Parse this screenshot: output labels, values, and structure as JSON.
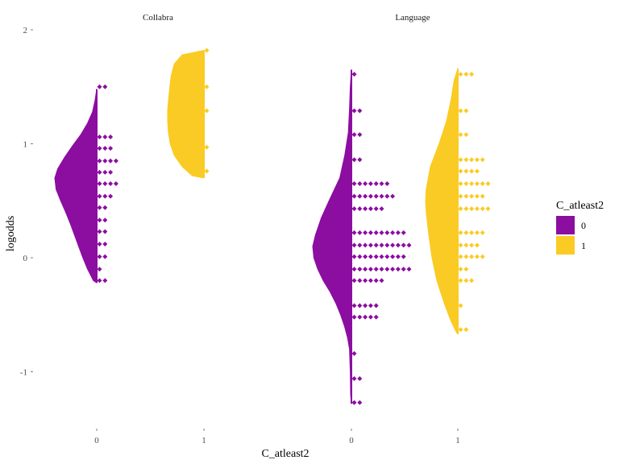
{
  "chart_data": {
    "type": "raincloud",
    "xlabel": "C_atleast2",
    "ylabel": "logodds",
    "ylim": [
      -1.5,
      2.15
    ],
    "yticks": [
      -1,
      0,
      1,
      2
    ],
    "legend": {
      "title": "C_atleast2",
      "placement": "right",
      "entries": [
        "0",
        "1"
      ]
    },
    "colors": {
      "0": "#8B0EA0",
      "1": "#FACB24"
    },
    "facets": [
      {
        "title": "Collabra",
        "groups": [
          {
            "category": "0",
            "dots": [
              [
                1.5,
                2
              ],
              [
                1.06,
                3
              ],
              [
                0.96,
                3
              ],
              [
                0.85,
                4
              ],
              [
                0.75,
                3
              ],
              [
                0.65,
                4
              ],
              [
                0.54,
                3
              ],
              [
                0.44,
                2
              ],
              [
                0.33,
                2
              ],
              [
                0.23,
                2
              ],
              [
                0.12,
                2
              ],
              [
                0.01,
                2
              ],
              [
                -0.1,
                1
              ],
              [
                -0.2,
                2
              ]
            ],
            "density": [
              [
                1.48,
                0.0
              ],
              [
                1.38,
                0.04
              ],
              [
                1.28,
                0.1
              ],
              [
                1.18,
                0.22
              ],
              [
                1.08,
                0.38
              ],
              [
                0.98,
                0.58
              ],
              [
                0.88,
                0.77
              ],
              [
                0.78,
                0.93
              ],
              [
                0.7,
                1.0
              ],
              [
                0.6,
                0.97
              ],
              [
                0.5,
                0.86
              ],
              [
                0.4,
                0.74
              ],
              [
                0.3,
                0.63
              ],
              [
                0.2,
                0.53
              ],
              [
                0.1,
                0.43
              ],
              [
                0.0,
                0.33
              ],
              [
                -0.1,
                0.22
              ],
              [
                -0.2,
                0.08
              ],
              [
                -0.22,
                0.0
              ]
            ]
          },
          {
            "category": "1",
            "dots": [
              [
                1.82,
                1
              ],
              [
                1.5,
                1
              ],
              [
                1.29,
                1
              ],
              [
                0.97,
                1
              ],
              [
                0.76,
                1
              ]
            ],
            "density": [
              [
                1.82,
                0.0
              ],
              [
                1.78,
                0.6
              ],
              [
                1.7,
                0.82
              ],
              [
                1.6,
                0.9
              ],
              [
                1.5,
                0.94
              ],
              [
                1.4,
                0.97
              ],
              [
                1.3,
                1.0
              ],
              [
                1.2,
                1.0
              ],
              [
                1.1,
                0.98
              ],
              [
                1.0,
                0.93
              ],
              [
                0.9,
                0.82
              ],
              [
                0.8,
                0.6
              ],
              [
                0.72,
                0.32
              ],
              [
                0.7,
                0.0
              ]
            ]
          }
        ]
      },
      {
        "title": "Language",
        "groups": [
          {
            "category": "0",
            "dots": [
              [
                1.61,
                1
              ],
              [
                1.29,
                2
              ],
              [
                1.08,
                2
              ],
              [
                0.86,
                2
              ],
              [
                0.65,
                7
              ],
              [
                0.54,
                8
              ],
              [
                0.43,
                6
              ],
              [
                0.22,
                10
              ],
              [
                0.11,
                11
              ],
              [
                0.01,
                10
              ],
              [
                -0.1,
                11
              ],
              [
                -0.2,
                6
              ],
              [
                -0.42,
                5
              ],
              [
                -0.52,
                5
              ],
              [
                -0.84,
                1
              ],
              [
                -1.06,
                2
              ],
              [
                -1.27,
                2
              ]
            ],
            "density": [
              [
                1.65,
                0.0
              ],
              [
                1.5,
                0.03
              ],
              [
                1.3,
                0.05
              ],
              [
                1.1,
                0.08
              ],
              [
                0.9,
                0.17
              ],
              [
                0.7,
                0.3
              ],
              [
                0.5,
                0.58
              ],
              [
                0.35,
                0.78
              ],
              [
                0.2,
                0.93
              ],
              [
                0.1,
                1.0
              ],
              [
                0.0,
                0.97
              ],
              [
                -0.1,
                0.87
              ],
              [
                -0.2,
                0.73
              ],
              [
                -0.3,
                0.55
              ],
              [
                -0.4,
                0.4
              ],
              [
                -0.5,
                0.28
              ],
              [
                -0.6,
                0.18
              ],
              [
                -0.7,
                0.1
              ],
              [
                -0.8,
                0.05
              ],
              [
                -1.0,
                0.03
              ],
              [
                -1.2,
                0.02
              ],
              [
                -1.28,
                0.0
              ]
            ]
          },
          {
            "category": "1",
            "dots": [
              [
                1.61,
                3
              ],
              [
                1.29,
                2
              ],
              [
                1.08,
                2
              ],
              [
                0.86,
                5
              ],
              [
                0.76,
                4
              ],
              [
                0.65,
                6
              ],
              [
                0.54,
                5
              ],
              [
                0.43,
                6
              ],
              [
                0.22,
                5
              ],
              [
                0.11,
                4
              ],
              [
                0.01,
                5
              ],
              [
                -0.1,
                2
              ],
              [
                -0.2,
                3
              ],
              [
                -0.42,
                1
              ],
              [
                -0.63,
                2
              ]
            ],
            "density": [
              [
                1.66,
                0.0
              ],
              [
                1.55,
                0.12
              ],
              [
                1.4,
                0.2
              ],
              [
                1.2,
                0.35
              ],
              [
                1.0,
                0.58
              ],
              [
                0.8,
                0.85
              ],
              [
                0.6,
                0.98
              ],
              [
                0.5,
                1.0
              ],
              [
                0.4,
                0.98
              ],
              [
                0.2,
                0.9
              ],
              [
                0.0,
                0.8
              ],
              [
                -0.2,
                0.65
              ],
              [
                -0.4,
                0.42
              ],
              [
                -0.55,
                0.22
              ],
              [
                -0.65,
                0.05
              ],
              [
                -0.67,
                0.0
              ]
            ]
          }
        ]
      }
    ]
  }
}
